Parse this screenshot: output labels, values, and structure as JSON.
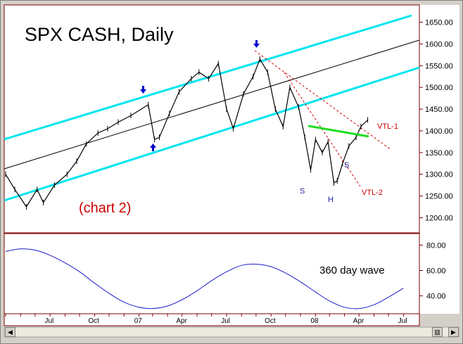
{
  "chart_data": {
    "type": "line",
    "panels": [
      {
        "name": "price",
        "title": "SPX CASH, Daily",
        "annotation": "(chart 2)",
        "ylim": [
          1170,
          1685
        ],
        "yticks": [
          1200,
          1250,
          1300,
          1350,
          1400,
          1450,
          1500,
          1550,
          1600,
          1650
        ],
        "ytick_labels": [
          "1200.00",
          "1250.00",
          "1300.00",
          "1350.00",
          "1400.00",
          "1450.00",
          "1500.00",
          "1550.00",
          "1600.00",
          "1650.00"
        ],
        "series": [
          {
            "x": [
              "2006-05-01",
              "2006-05-20",
              "2006-06-13",
              "2006-07-05",
              "2006-07-18",
              "2006-08-10",
              "2006-09-05",
              "2006-09-25",
              "2006-10-15",
              "2006-11-08",
              "2006-11-28",
              "2006-12-20",
              "2007-01-15",
              "2007-02-20",
              "2007-03-05",
              "2007-03-15",
              "2007-04-05",
              "2007-04-25",
              "2007-05-20",
              "2007-06-05",
              "2007-06-25",
              "2007-07-15",
              "2007-08-01",
              "2007-08-15",
              "2007-09-05",
              "2007-09-25",
              "2007-10-09",
              "2007-10-25",
              "2007-11-10",
              "2007-11-26",
              "2007-12-10",
              "2007-12-28",
              "2008-01-10",
              "2008-01-22",
              "2008-02-01",
              "2008-02-15",
              "2008-02-27",
              "2008-03-10",
              "2008-03-17",
              "2008-03-28",
              "2008-04-10",
              "2008-04-25",
              "2008-05-05",
              "2008-05-19"
            ],
            "y": [
              1300,
              1265,
              1225,
              1265,
              1235,
              1275,
              1300,
              1330,
              1370,
              1395,
              1405,
              1420,
              1435,
              1460,
              1380,
              1385,
              1440,
              1490,
              1520,
              1535,
              1520,
              1555,
              1450,
              1405,
              1485,
              1525,
              1565,
              1535,
              1450,
              1410,
              1500,
              1455,
              1385,
              1310,
              1380,
              1350,
              1375,
              1280,
              1285,
              1325,
              1365,
              1385,
              1410,
              1425
            ]
          }
        ],
        "annotations": [
          "S",
          "H",
          "S",
          "VTL-1",
          "VTL-2"
        ]
      },
      {
        "name": "wave",
        "label": "360 day wave",
        "ylim": [
          27,
          88
        ],
        "yticks": [
          40,
          60,
          80
        ],
        "ytick_labels": [
          "40.00",
          "60.00",
          "80.00"
        ],
        "series": [
          {
            "x": [
              "2006-05-01",
              "2006-06-01",
              "2006-07-01",
              "2006-08-01",
              "2006-09-01",
              "2006-10-01",
              "2006-11-01",
              "2006-12-01",
              "2007-01-01",
              "2007-02-01",
              "2007-03-01",
              "2007-04-01",
              "2007-05-01",
              "2007-06-01",
              "2007-07-01",
              "2007-08-01",
              "2007-09-01",
              "2007-10-01",
              "2007-11-01",
              "2007-12-01",
              "2008-01-01",
              "2008-02-01",
              "2008-03-01",
              "2008-04-01",
              "2008-05-01",
              "2008-06-01",
              "2008-07-01",
              "2008-08-01"
            ],
            "y": [
              75,
              77,
              76,
              72,
              66,
              59,
              50,
              42,
              35,
              31,
              30,
              32,
              37,
              44,
              52,
              59,
              64,
              65,
              63,
              58,
              51,
              43,
              36,
              31,
              30,
              33,
              39,
              46
            ]
          }
        ]
      }
    ],
    "x_tick_labels": [
      "Jul",
      "Oct",
      "07",
      "Apr",
      "Jul",
      "Oct",
      "08",
      "Apr",
      "Jul"
    ],
    "grid": false
  }
}
